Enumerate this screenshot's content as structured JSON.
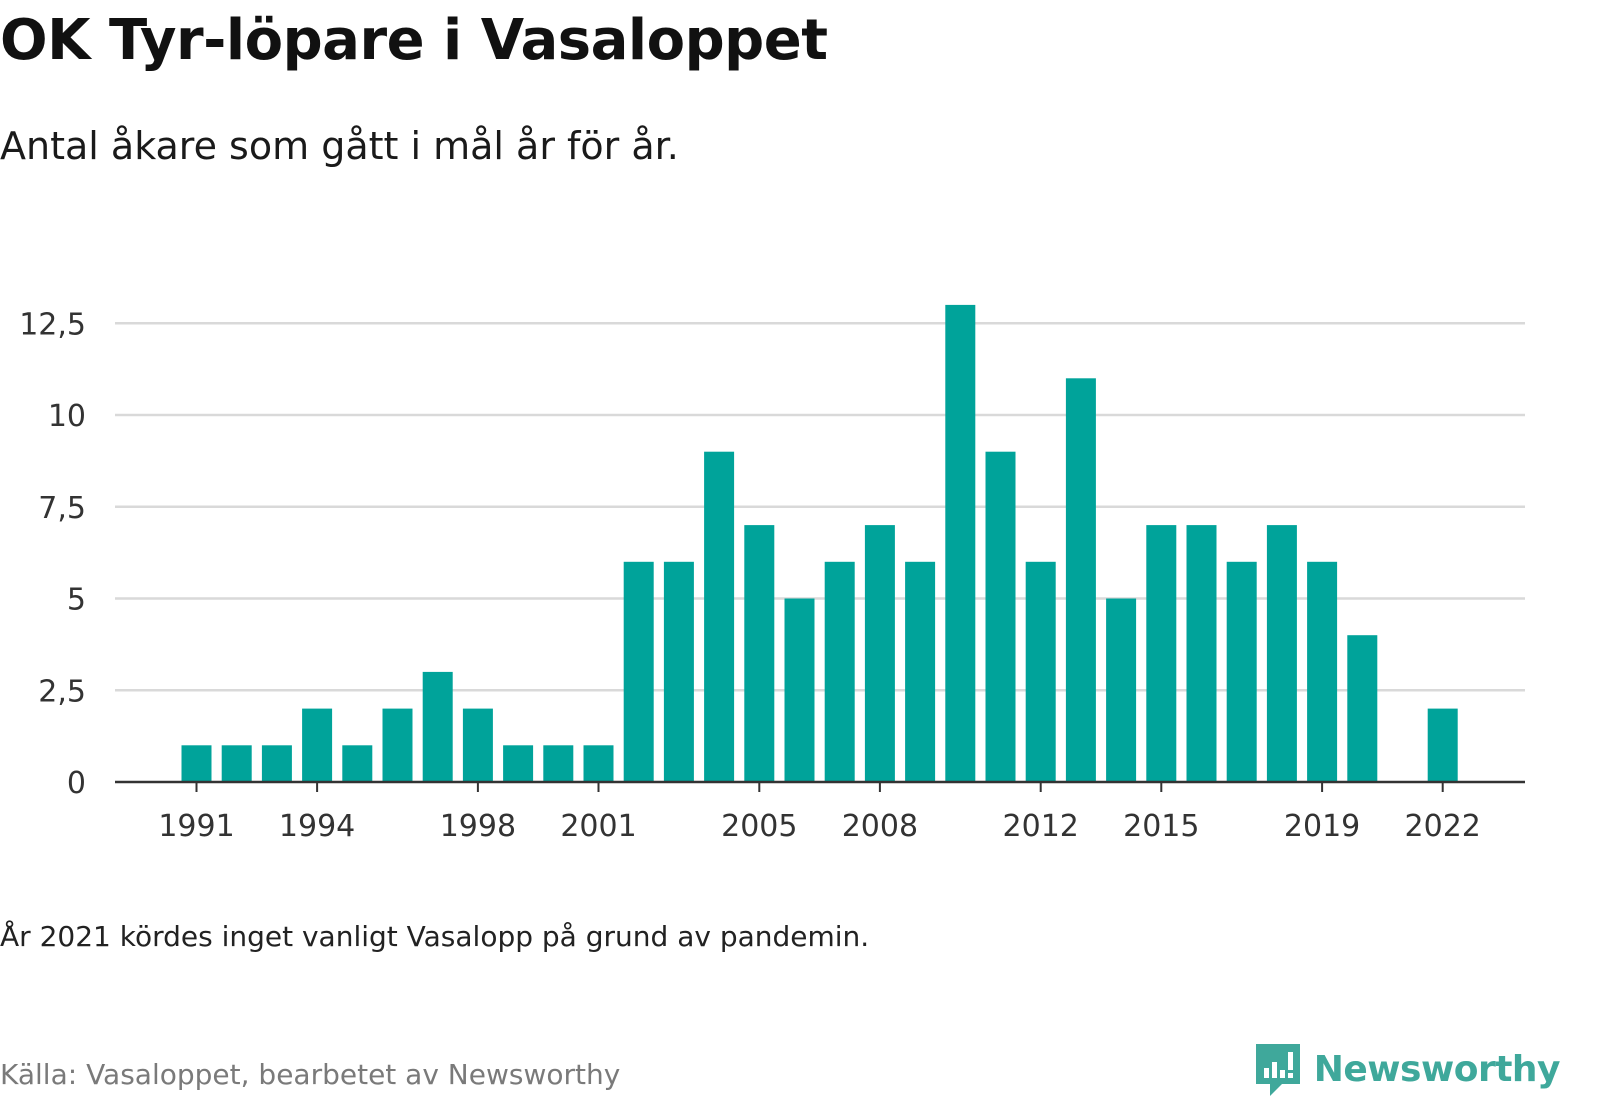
{
  "title": "OK Tyr-löpare i Vasaloppet",
  "subtitle": "Antal åkare som gått i mål år för år.",
  "note": "År 2021 kördes inget vanligt Vasalopp på grund av pandemin.",
  "source": "Källa: Vasaloppet, bearbetet av Newsworthy",
  "logo": {
    "text": "Newsworthy",
    "icon": "newsworthy-logo-icon",
    "color": "#3fa89b"
  },
  "colors": {
    "bar": "#00a39a",
    "grid": "#d9d9d9",
    "axis": "#333333",
    "tick_text": "#333333"
  },
  "chart_data": {
    "type": "bar",
    "title": "OK Tyr-löpare i Vasaloppet",
    "subtitle": "Antal åkare som gått i mål år för år.",
    "xlabel": "",
    "ylabel": "",
    "categories": [
      1991,
      1992,
      1993,
      1994,
      1995,
      1996,
      1997,
      1998,
      1999,
      2000,
      2001,
      2002,
      2003,
      2004,
      2005,
      2006,
      2007,
      2008,
      2009,
      2010,
      2011,
      2012,
      2013,
      2014,
      2015,
      2016,
      2017,
      2018,
      2019,
      2020,
      2021,
      2022
    ],
    "values": [
      1,
      1,
      1,
      2,
      1,
      2,
      3,
      2,
      1,
      1,
      1,
      6,
      6,
      9,
      7,
      5,
      6,
      7,
      6,
      13,
      9,
      6,
      11,
      5,
      7,
      7,
      6,
      7,
      6,
      4,
      null,
      2
    ],
    "x_tick_labels": [
      "1991",
      "1994",
      "1998",
      "2001",
      "2005",
      "2008",
      "2012",
      "2015",
      "2019",
      "2022"
    ],
    "y_ticks": [
      0,
      2.5,
      5,
      7.5,
      10,
      12.5
    ],
    "y_tick_labels": [
      "0",
      "2,5",
      "5",
      "7,5",
      "10",
      "12,5"
    ],
    "ylim": [
      0,
      13
    ],
    "grid": "horizontal",
    "legend": "none"
  }
}
